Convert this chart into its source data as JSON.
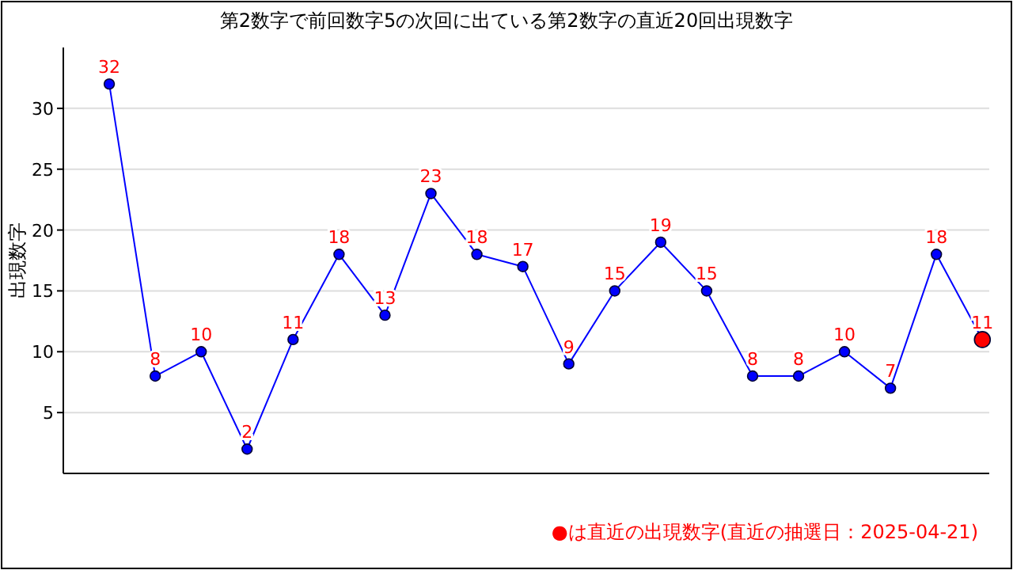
{
  "chart_data": {
    "type": "line",
    "title": "第2数字で前回数字5の次回に出ている第2数字の直近20回出現数字",
    "ylabel": "出現数字",
    "categories": [
      null,
      null,
      null,
      null,
      null,
      null,
      null,
      null,
      null,
      null,
      null,
      null,
      null,
      null,
      null,
      null,
      null,
      null,
      null,
      null
    ],
    "series": [
      {
        "color": "#0000ff",
        "values": [
          32,
          8,
          10,
          2,
          11,
          18,
          13,
          23,
          18,
          17,
          9,
          15,
          19,
          15,
          8,
          8,
          10,
          7,
          18,
          11
        ],
        "colors": [
          "#0000ff",
          "#0000ff",
          "#0000ff",
          "#0000ff",
          "#0000ff",
          "#0000ff",
          "#0000ff",
          "#0000ff",
          "#0000ff",
          "#0000ff",
          "#0000ff",
          "#0000ff",
          "#0000ff",
          "#0000ff",
          "#0000ff",
          "#0000ff",
          "#0000ff",
          "#0000ff",
          "#0000ff",
          "#ff0000"
        ]
      }
    ],
    "ylim": [
      0,
      35
    ],
    "yticks": [
      5,
      10,
      15,
      20,
      25,
      30
    ],
    "grid": "y",
    "marker": "circle",
    "line_style": "solid",
    "data_labels": true,
    "annotations": [
      "●は直近の出現数字(直近の抽選日：2025-04-21)"
    ]
  }
}
